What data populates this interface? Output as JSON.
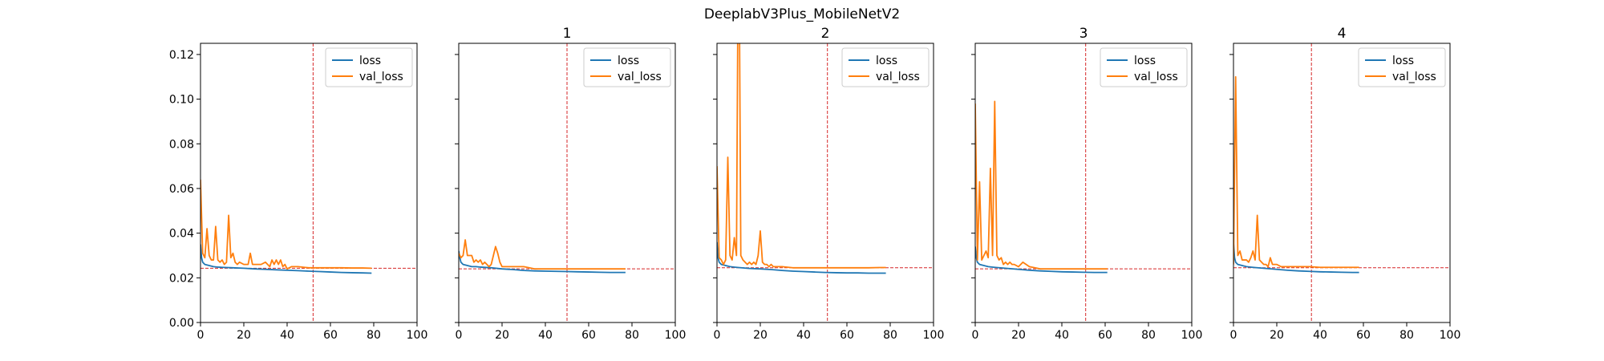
{
  "figure": {
    "suptitle": "DeeplabV3Plus_MobileNetV2"
  },
  "chart_data": [
    {
      "type": "line",
      "title": "",
      "xlim": [
        0,
        100
      ],
      "ylim": [
        0,
        0.125
      ],
      "xticks": [
        0,
        20,
        40,
        60,
        80,
        100
      ],
      "yticks": [
        0.0,
        0.02,
        0.04,
        0.06,
        0.08,
        0.1,
        0.12
      ],
      "show_ytick_labels": true,
      "legend": "top-right",
      "vline_x": 52,
      "hline_y": 0.0243,
      "series": [
        {
          "name": "loss",
          "color": "#1f77b4",
          "x": [
            0,
            0.5,
            1,
            2,
            4,
            6,
            8,
            10,
            15,
            20,
            25,
            30,
            35,
            40,
            45,
            50,
            55,
            60,
            65,
            70,
            75,
            79
          ],
          "y": [
            0.035,
            0.029,
            0.027,
            0.026,
            0.0255,
            0.025,
            0.0248,
            0.0247,
            0.0245,
            0.0243,
            0.024,
            0.0238,
            0.0236,
            0.0234,
            0.0232,
            0.023,
            0.0228,
            0.0226,
            0.0224,
            0.0223,
            0.0222,
            0.0221
          ]
        },
        {
          "name": "val_loss",
          "color": "#ff7f0e",
          "x": [
            0,
            1,
            2,
            3,
            4,
            5,
            6,
            7,
            8,
            9,
            10,
            11,
            12,
            13,
            14,
            15,
            16,
            17,
            18,
            20,
            22,
            23,
            24,
            26,
            28,
            30,
            32,
            33,
            34,
            35,
            36,
            37,
            38,
            39,
            40,
            42,
            45,
            50,
            55,
            60,
            65,
            70,
            75,
            79
          ],
          "y": [
            0.064,
            0.031,
            0.029,
            0.042,
            0.03,
            0.028,
            0.028,
            0.043,
            0.028,
            0.027,
            0.028,
            0.026,
            0.027,
            0.048,
            0.029,
            0.031,
            0.027,
            0.026,
            0.027,
            0.026,
            0.026,
            0.031,
            0.026,
            0.026,
            0.026,
            0.027,
            0.025,
            0.028,
            0.026,
            0.028,
            0.026,
            0.028,
            0.025,
            0.026,
            0.024,
            0.025,
            0.025,
            0.0245,
            0.0245,
            0.0245,
            0.0245,
            0.0244,
            0.0244,
            0.0243
          ]
        }
      ]
    },
    {
      "type": "line",
      "title": "1",
      "xlim": [
        0,
        100
      ],
      "ylim": [
        0,
        0.125
      ],
      "xticks": [
        0,
        20,
        40,
        60,
        80,
        100
      ],
      "yticks": [
        0.0,
        0.02,
        0.04,
        0.06,
        0.08,
        0.1,
        0.12
      ],
      "show_ytick_labels": false,
      "legend": "top-right",
      "vline_x": 50,
      "hline_y": 0.024,
      "series": [
        {
          "name": "loss",
          "color": "#1f77b4",
          "x": [
            0,
            0.5,
            1,
            2,
            4,
            6,
            8,
            10,
            15,
            20,
            25,
            30,
            35,
            40,
            45,
            50,
            55,
            60,
            65,
            70,
            75,
            77
          ],
          "y": [
            0.032,
            0.029,
            0.027,
            0.026,
            0.0255,
            0.025,
            0.025,
            0.0248,
            0.0245,
            0.024,
            0.0237,
            0.0233,
            0.0231,
            0.023,
            0.0229,
            0.0228,
            0.0227,
            0.0226,
            0.0225,
            0.0224,
            0.0224,
            0.0224
          ]
        },
        {
          "name": "val_loss",
          "color": "#ff7f0e",
          "x": [
            0,
            1,
            2,
            3,
            4,
            5,
            6,
            7,
            8,
            9,
            10,
            11,
            12,
            13,
            14,
            15,
            16,
            17,
            18,
            19,
            20,
            22,
            25,
            30,
            35,
            40,
            45,
            50,
            55,
            60,
            65,
            70,
            75,
            77
          ],
          "y": [
            0.031,
            0.029,
            0.03,
            0.037,
            0.03,
            0.03,
            0.03,
            0.027,
            0.028,
            0.027,
            0.028,
            0.026,
            0.027,
            0.026,
            0.025,
            0.026,
            0.03,
            0.034,
            0.031,
            0.027,
            0.025,
            0.025,
            0.025,
            0.025,
            0.024,
            0.024,
            0.024,
            0.024,
            0.024,
            0.024,
            0.024,
            0.024,
            0.024,
            0.024
          ]
        }
      ]
    },
    {
      "type": "line",
      "title": "2",
      "xlim": [
        0,
        100
      ],
      "ylim": [
        0,
        0.125
      ],
      "xticks": [
        0,
        20,
        40,
        60,
        80,
        100
      ],
      "yticks": [
        0.0,
        0.02,
        0.04,
        0.06,
        0.08,
        0.1,
        0.12
      ],
      "show_ytick_labels": false,
      "legend": "top-right",
      "vline_x": 51,
      "hline_y": 0.0245,
      "series": [
        {
          "name": "loss",
          "color": "#1f77b4",
          "x": [
            0,
            0.5,
            1,
            2,
            4,
            6,
            8,
            10,
            15,
            20,
            25,
            30,
            35,
            40,
            45,
            50,
            55,
            60,
            65,
            70,
            75,
            78
          ],
          "y": [
            0.036,
            0.029,
            0.027,
            0.026,
            0.0255,
            0.025,
            0.0248,
            0.0246,
            0.0242,
            0.024,
            0.0237,
            0.0233,
            0.023,
            0.0228,
            0.0226,
            0.0224,
            0.0223,
            0.0222,
            0.0222,
            0.0221,
            0.0221,
            0.0221
          ]
        },
        {
          "name": "val_loss",
          "color": "#ff7f0e",
          "x": [
            0,
            1,
            2,
            3,
            4,
            5,
            6,
            7,
            8,
            9,
            10,
            11,
            12,
            13,
            14,
            15,
            16,
            17,
            18,
            19,
            20,
            21,
            22,
            23,
            24,
            25,
            26,
            28,
            30,
            35,
            40,
            45,
            50,
            55,
            60,
            65,
            70,
            75,
            78
          ],
          "y": [
            0.07,
            0.029,
            0.028,
            0.026,
            0.028,
            0.074,
            0.03,
            0.028,
            0.038,
            0.03,
            0.2,
            0.03,
            0.028,
            0.027,
            0.026,
            0.027,
            0.026,
            0.027,
            0.026,
            0.03,
            0.041,
            0.027,
            0.026,
            0.026,
            0.025,
            0.026,
            0.025,
            0.025,
            0.025,
            0.0245,
            0.0245,
            0.0245,
            0.0245,
            0.0245,
            0.0245,
            0.0245,
            0.0245,
            0.0246,
            0.0246
          ]
        }
      ]
    },
    {
      "type": "line",
      "title": "3",
      "xlim": [
        0,
        100
      ],
      "ylim": [
        0,
        0.125
      ],
      "xticks": [
        0,
        20,
        40,
        60,
        80,
        100
      ],
      "yticks": [
        0.0,
        0.02,
        0.04,
        0.06,
        0.08,
        0.1,
        0.12
      ],
      "show_ytick_labels": false,
      "legend": "top-right",
      "vline_x": 51,
      "hline_y": 0.024,
      "series": [
        {
          "name": "loss",
          "color": "#1f77b4",
          "x": [
            0,
            0.5,
            1,
            2,
            4,
            6,
            8,
            10,
            15,
            20,
            25,
            30,
            35,
            40,
            45,
            50,
            55,
            60,
            61
          ],
          "y": [
            0.034,
            0.029,
            0.027,
            0.026,
            0.0255,
            0.025,
            0.0248,
            0.0246,
            0.0242,
            0.0238,
            0.0234,
            0.0231,
            0.0229,
            0.0227,
            0.0226,
            0.0225,
            0.0224,
            0.0224,
            0.0224
          ]
        },
        {
          "name": "val_loss",
          "color": "#ff7f0e",
          "x": [
            0,
            1,
            2,
            3,
            4,
            5,
            6,
            7,
            8,
            9,
            10,
            11,
            12,
            13,
            14,
            15,
            16,
            17,
            18,
            20,
            22,
            25,
            30,
            35,
            40,
            45,
            50,
            55,
            60,
            61
          ],
          "y": [
            0.098,
            0.028,
            0.063,
            0.028,
            0.03,
            0.032,
            0.029,
            0.069,
            0.03,
            0.099,
            0.03,
            0.028,
            0.029,
            0.026,
            0.027,
            0.026,
            0.027,
            0.026,
            0.026,
            0.025,
            0.027,
            0.025,
            0.024,
            0.024,
            0.024,
            0.024,
            0.024,
            0.024,
            0.024,
            0.024
          ]
        }
      ]
    },
    {
      "type": "line",
      "title": "4",
      "xlim": [
        0,
        100
      ],
      "ylim": [
        0,
        0.125
      ],
      "xticks": [
        0,
        20,
        40,
        60,
        80,
        100
      ],
      "yticks": [
        0.0,
        0.02,
        0.04,
        0.06,
        0.08,
        0.1,
        0.12
      ],
      "show_ytick_labels": false,
      "legend": "top-right",
      "vline_x": 36,
      "hline_y": 0.0245,
      "series": [
        {
          "name": "loss",
          "color": "#1f77b4",
          "x": [
            0,
            0.5,
            1,
            2,
            4,
            6,
            8,
            10,
            15,
            20,
            25,
            30,
            35,
            40,
            45,
            50,
            55,
            58
          ],
          "y": [
            0.036,
            0.029,
            0.027,
            0.026,
            0.0255,
            0.025,
            0.0248,
            0.0246,
            0.0242,
            0.0238,
            0.0234,
            0.0231,
            0.0229,
            0.0227,
            0.0226,
            0.0225,
            0.0224,
            0.0224
          ]
        },
        {
          "name": "val_loss",
          "color": "#ff7f0e",
          "x": [
            0,
            1,
            2,
            3,
            4,
            5,
            6,
            7,
            8,
            9,
            10,
            11,
            12,
            13,
            14,
            15,
            16,
            17,
            18,
            19,
            20,
            22,
            25,
            30,
            35,
            40,
            45,
            50,
            55,
            58
          ],
          "y": [
            0.026,
            0.11,
            0.03,
            0.032,
            0.028,
            0.028,
            0.028,
            0.027,
            0.029,
            0.032,
            0.028,
            0.048,
            0.028,
            0.027,
            0.026,
            0.026,
            0.025,
            0.029,
            0.026,
            0.026,
            0.026,
            0.025,
            0.025,
            0.025,
            0.025,
            0.0247,
            0.0247,
            0.0247,
            0.0247,
            0.0247
          ]
        }
      ]
    }
  ]
}
